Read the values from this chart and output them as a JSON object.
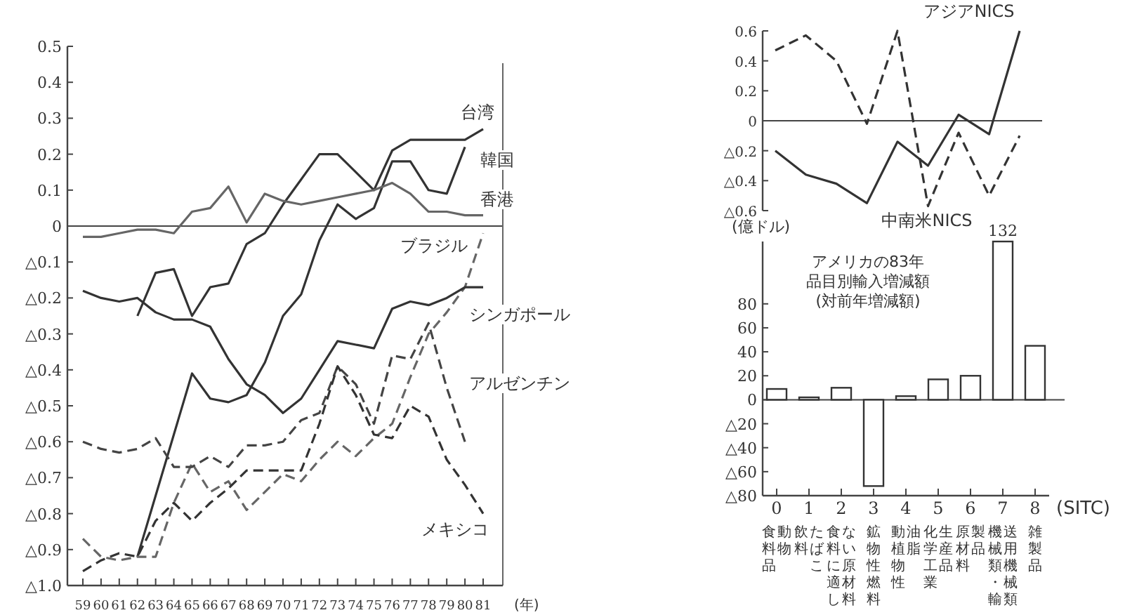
{
  "chart_data": [
    {
      "type": "line",
      "xlabel": "(年)",
      "categories": [
        "59",
        "60",
        "61",
        "62",
        "63",
        "64",
        "65",
        "66",
        "67",
        "68",
        "69",
        "70",
        "71",
        "72",
        "73",
        "74",
        "75",
        "76",
        "77",
        "78",
        "79",
        "80",
        "81"
      ],
      "ylim": [
        -1.0,
        0.5
      ],
      "yticks": [
        0.5,
        0.4,
        0.3,
        0.2,
        0.1,
        0,
        {
          "value": -0.1,
          "label": "△0.1"
        },
        {
          "value": -0.2,
          "label": "△0.2"
        },
        {
          "value": -0.3,
          "label": "△0.3"
        },
        {
          "value": -0.4,
          "label": "△0.4"
        },
        {
          "value": -0.5,
          "label": "△0.5"
        },
        {
          "value": -0.6,
          "label": "△0.6"
        },
        {
          "value": -0.7,
          "label": "△0.7"
        },
        {
          "value": -0.8,
          "label": "△0.8"
        },
        {
          "value": -0.9,
          "label": "△0.9"
        },
        {
          "value": -1.0,
          "label": "△1.0"
        }
      ],
      "ref_lines": [
        {
          "axis": "y",
          "value": 0
        }
      ],
      "legend": false,
      "series": [
        {
          "name": "台湾",
          "color": "#333333",
          "line_style": "solid",
          "values": [
            null,
            null,
            null,
            -0.25,
            -0.13,
            -0.12,
            -0.25,
            -0.17,
            -0.16,
            -0.05,
            -0.02,
            0.06,
            0.13,
            0.2,
            0.2,
            0.15,
            0.1,
            0.21,
            0.24,
            0.24,
            0.24,
            0.24,
            0.27
          ]
        },
        {
          "name": "韓国",
          "color": "#333333",
          "line_style": "solid",
          "values": [
            null,
            null,
            null,
            -0.92,
            -0.75,
            -0.58,
            -0.41,
            -0.48,
            -0.49,
            -0.47,
            -0.38,
            -0.25,
            -0.19,
            -0.04,
            0.06,
            0.02,
            0.05,
            0.18,
            0.18,
            0.1,
            0.09,
            0.22,
            null
          ]
        },
        {
          "name": "香港",
          "color": "#666666",
          "line_style": "solid",
          "values": [
            -0.03,
            -0.03,
            -0.02,
            -0.01,
            -0.01,
            -0.02,
            0.04,
            0.05,
            0.11,
            0.01,
            0.09,
            0.07,
            0.06,
            0.07,
            0.08,
            0.09,
            0.1,
            0.12,
            0.09,
            0.04,
            0.04,
            0.03,
            0.03
          ]
        },
        {
          "name": "ブラジル",
          "color": "#666666",
          "line_style": "dashed",
          "values": [
            -0.87,
            -0.92,
            -0.93,
            -0.92,
            -0.92,
            -0.77,
            -0.66,
            -0.74,
            -0.71,
            -0.79,
            -0.74,
            -0.69,
            -0.71,
            -0.65,
            -0.6,
            -0.64,
            -0.59,
            -0.55,
            -0.42,
            -0.3,
            -0.24,
            -0.17,
            -0.02
          ]
        },
        {
          "name": "シンガポール",
          "color": "#333333",
          "line_style": "solid",
          "values": [
            -0.18,
            -0.2,
            -0.21,
            -0.2,
            -0.24,
            -0.26,
            -0.26,
            -0.28,
            -0.37,
            -0.44,
            -0.47,
            -0.52,
            -0.48,
            -0.4,
            -0.32,
            -0.33,
            -0.34,
            -0.23,
            -0.21,
            -0.22,
            -0.2,
            -0.17,
            -0.17
          ]
        },
        {
          "name": "アルゼンチン",
          "color": "#444444",
          "line_style": "dashed",
          "values": [
            -0.6,
            -0.62,
            -0.63,
            -0.62,
            -0.59,
            -0.67,
            -0.67,
            -0.64,
            -0.67,
            -0.61,
            -0.61,
            -0.6,
            -0.54,
            -0.52,
            -0.39,
            -0.44,
            -0.55,
            -0.36,
            -0.37,
            -0.27,
            -0.45,
            -0.6,
            null
          ]
        },
        {
          "name": "メキシコ",
          "color": "#333333",
          "line_style": "dashed",
          "values": [
            -0.96,
            -0.93,
            -0.91,
            -0.92,
            -0.82,
            -0.77,
            -0.82,
            -0.77,
            -0.73,
            -0.68,
            -0.68,
            -0.68,
            -0.68,
            -0.55,
            -0.39,
            -0.47,
            -0.58,
            -0.59,
            -0.5,
            -0.53,
            -0.65,
            -0.72,
            -0.8
          ]
        }
      ]
    },
    {
      "type": "line",
      "categories": [
        null,
        null,
        null,
        null,
        null,
        null,
        null,
        null,
        null
      ],
      "ylim": [
        -0.6,
        0.6
      ],
      "yticks": [
        0.6,
        0.4,
        0.2,
        0,
        {
          "value": -0.2,
          "label": "△0.2"
        },
        {
          "value": -0.4,
          "label": "△0.4"
        },
        {
          "value": -0.6,
          "label": "△0.6"
        }
      ],
      "tick_labels": "y",
      "ref_lines": [
        {
          "axis": "y",
          "value": 0
        }
      ],
      "legend": false,
      "series": [
        {
          "name": "アジアNICS",
          "color": "#333333",
          "line_style": "solid",
          "values": [
            -0.2,
            -0.36,
            -0.42,
            -0.55,
            -0.14,
            -0.3,
            0.04,
            -0.09,
            0.6
          ]
        },
        {
          "name": "中南米NICS",
          "color": "#333333",
          "line_style": "dashed",
          "values": [
            0.47,
            0.57,
            0.4,
            -0.02,
            0.6,
            -0.57,
            -0.08,
            -0.5,
            -0.1
          ]
        }
      ]
    },
    {
      "type": "bar",
      "title": "アメリカの83年",
      "subtitle": "品目別輸入増減額",
      "ylabel": "(億ドル)",
      "xlabel": "(SITC)",
      "categories": [
        "0",
        "1",
        "2",
        "3",
        "4",
        "5",
        "6",
        "7",
        "8"
      ],
      "values": [
        9,
        2,
        10,
        -72,
        3,
        17,
        20,
        132,
        45
      ],
      "value_labels": [
        null,
        null,
        null,
        null,
        null,
        null,
        null,
        "132",
        null
      ],
      "color": "#ffffff",
      "ylim": [
        -80,
        132
      ],
      "yticks": [
        80,
        60,
        40,
        20,
        0,
        {
          "value": -20,
          "label": "△20"
        },
        {
          "value": -40,
          "label": "△40"
        },
        {
          "value": -60,
          "label": "△60"
        },
        {
          "value": -80,
          "label": "△80"
        }
      ],
      "ref_lines": [
        {
          "axis": "y",
          "value": 0
        }
      ],
      "annotations": [
        "(対前年増減額)",
        "食料品",
        "動物",
        "飲料",
        "たばこ",
        "食料に適し",
        "ない原材料",
        "鉱物性燃料",
        "動植物性",
        "油脂",
        "化学工業",
        "生産品",
        "原材料",
        "製品",
        "機械類・輸",
        "送用機械類",
        "雑製品"
      ]
    }
  ]
}
